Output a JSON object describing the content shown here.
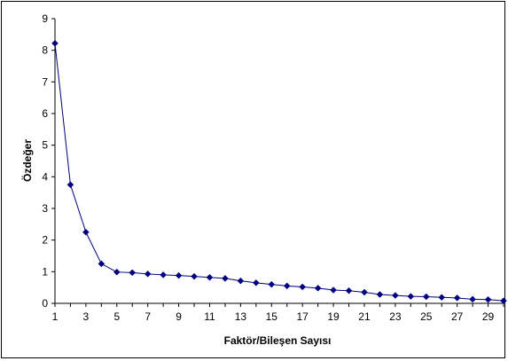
{
  "chart_data": {
    "type": "line",
    "title": "",
    "xlabel": "Faktör/Bileşen Sayısı",
    "ylabel": "Özdeğer",
    "xlim": [
      1,
      30
    ],
    "ylim": [
      0,
      9
    ],
    "y_ticks": [
      0,
      1,
      2,
      3,
      4,
      5,
      6,
      7,
      8,
      9
    ],
    "x_ticks": [
      1,
      3,
      5,
      7,
      9,
      11,
      13,
      15,
      17,
      19,
      21,
      23,
      25,
      27,
      29
    ],
    "grid": false,
    "legend": "none",
    "series_color": "#000080",
    "series": [
      {
        "x": [
          1,
          2,
          3,
          4,
          5,
          6,
          7,
          8,
          9,
          10,
          11,
          12,
          13,
          14,
          15,
          16,
          17,
          18,
          19,
          20,
          21,
          22,
          23,
          24,
          25,
          26,
          27,
          28,
          29,
          30
        ],
        "values": [
          8.22,
          3.75,
          2.25,
          1.25,
          0.99,
          0.97,
          0.93,
          0.9,
          0.88,
          0.85,
          0.82,
          0.79,
          0.71,
          0.65,
          0.6,
          0.55,
          0.52,
          0.48,
          0.42,
          0.4,
          0.35,
          0.28,
          0.25,
          0.22,
          0.21,
          0.19,
          0.17,
          0.13,
          0.12,
          0.08
        ]
      }
    ]
  }
}
